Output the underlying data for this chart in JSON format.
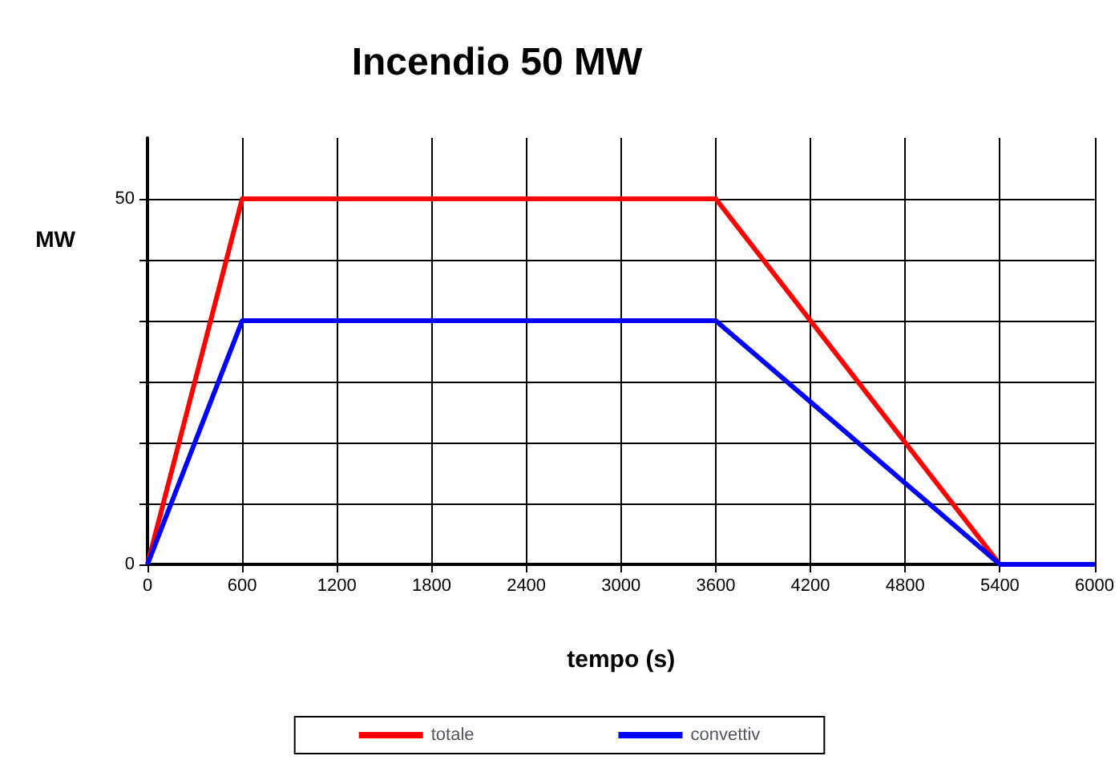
{
  "chart_data": {
    "type": "line",
    "title": "Incendio 50 MW",
    "xlabel": "tempo (s)",
    "ylabel": "MW",
    "x": [
      0,
      600,
      3600,
      5400,
      6000
    ],
    "series": [
      {
        "name": "totale",
        "color": "#ff0000",
        "values": [
          0,
          50,
          50,
          0,
          0
        ]
      },
      {
        "name": "convettiv",
        "color": "#0000ff",
        "values": [
          0,
          33.33,
          33.33,
          0,
          0
        ]
      }
    ],
    "xlim": [
      0,
      6000
    ],
    "xticks": [
      0,
      600,
      1200,
      1800,
      2400,
      3000,
      3600,
      4200,
      4800,
      5400,
      6000
    ],
    "ylim": [
      0,
      58.33
    ],
    "yticks": [
      0,
      {
        "value": 8.33,
        "label": null
      },
      {
        "value": 16.67,
        "label": null
      },
      {
        "value": 25,
        "label": null
      },
      {
        "value": 33.33,
        "label": null
      },
      {
        "value": 41.67,
        "label": null
      },
      50
    ],
    "grid": true,
    "legend": "bottom",
    "marker": "none",
    "line_style": "solid"
  }
}
